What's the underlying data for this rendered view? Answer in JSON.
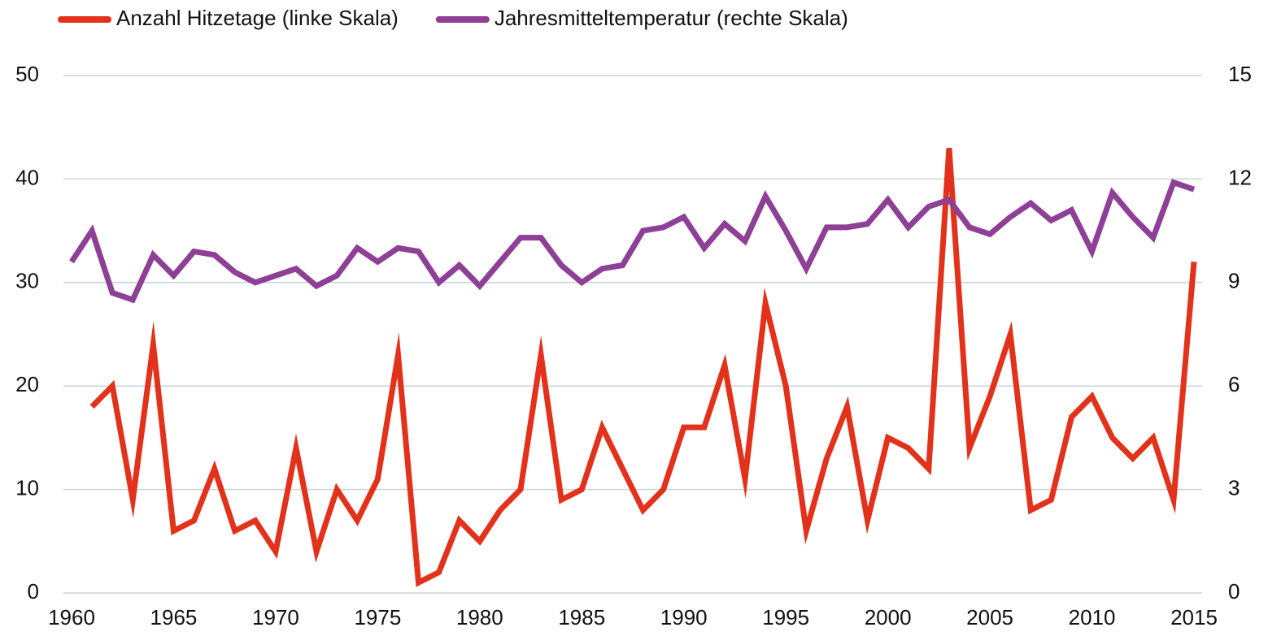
{
  "chart_data": {
    "type": "line",
    "x": [
      1960,
      1961,
      1962,
      1963,
      1964,
      1965,
      1966,
      1967,
      1968,
      1969,
      1970,
      1971,
      1972,
      1973,
      1974,
      1975,
      1976,
      1977,
      1978,
      1979,
      1980,
      1981,
      1982,
      1983,
      1984,
      1985,
      1986,
      1987,
      1988,
      1989,
      1990,
      1991,
      1992,
      1993,
      1994,
      1995,
      1996,
      1997,
      1998,
      1999,
      2000,
      2001,
      2002,
      2003,
      2004,
      2005,
      2006,
      2007,
      2008,
      2009,
      2010,
      2011,
      2012,
      2013,
      2014,
      2015
    ],
    "series": [
      {
        "name": "Anzahl Hitzetage (linke Skala)",
        "color": "#e2321c",
        "values": [
          null,
          18,
          20,
          9,
          24,
          6,
          7,
          12,
          6,
          7,
          4,
          14,
          4,
          10,
          7,
          11,
          23,
          1,
          2,
          7,
          5,
          8,
          10,
          23,
          9,
          10,
          16,
          12,
          8,
          10,
          16,
          16,
          22,
          11,
          28,
          20,
          6,
          13,
          18,
          7,
          15,
          14,
          12,
          43,
          14,
          19,
          25,
          8,
          9,
          17,
          19,
          15,
          13,
          15,
          9,
          32
        ]
      },
      {
        "name": "Jahresmitteltemperatur (rechte Skala)",
        "color": "#8e3f96",
        "axis": "y2",
        "values": [
          9.6,
          10.5,
          8.7,
          8.5,
          9.8,
          9.2,
          9.9,
          9.8,
          9.3,
          9.0,
          9.2,
          9.4,
          8.9,
          9.2,
          10.0,
          9.6,
          10.0,
          9.9,
          9.0,
          9.5,
          8.9,
          9.6,
          10.3,
          10.3,
          9.5,
          9.0,
          9.4,
          9.5,
          10.5,
          10.6,
          10.9,
          10.0,
          10.7,
          10.2,
          11.5,
          10.5,
          9.4,
          10.6,
          10.6,
          10.7,
          11.4,
          10.6,
          11.2,
          11.4,
          10.6,
          10.4,
          10.9,
          11.3,
          10.8,
          11.1,
          9.9,
          11.6,
          10.9,
          10.3,
          11.9,
          11.7
        ]
      }
    ],
    "xlim": [
      1960,
      2015
    ],
    "xticks": [
      1960,
      1965,
      1970,
      1975,
      1980,
      1985,
      1990,
      1995,
      2000,
      2005,
      2010,
      2015
    ],
    "ylim": [
      0,
      50
    ],
    "yticks": [
      0,
      10,
      20,
      30,
      40,
      50
    ],
    "y2lim": [
      0,
      15
    ],
    "y2ticks": [
      0,
      3,
      6,
      9,
      12,
      15
    ],
    "grid": true,
    "legend": "top-left"
  }
}
